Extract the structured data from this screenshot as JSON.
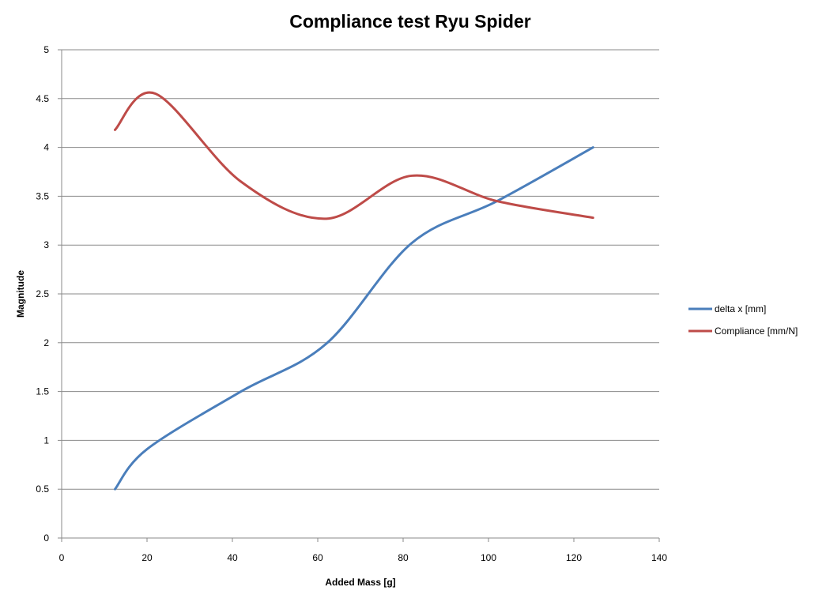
{
  "chart_data": {
    "type": "line",
    "title": "Compliance test Ryu Spider",
    "xlabel": "Added Mass  [g]",
    "ylabel": "Magnitude",
    "xlim": [
      0,
      140
    ],
    "ylim": [
      0,
      5
    ],
    "x_ticks": [
      "0",
      "20",
      "40",
      "60",
      "80",
      "100",
      "120",
      "140"
    ],
    "y_ticks": [
      "0",
      "0.5",
      "1",
      "1.5",
      "2",
      "2.5",
      "3",
      "3.5",
      "4",
      "4.5",
      "5"
    ],
    "grid": "horizontal",
    "legend_position": "right",
    "series": [
      {
        "name": "delta x  [mm]",
        "color": "#4A7EBB",
        "x": [
          12.5,
          20,
          42,
          62,
          82,
          102,
          124.5
        ],
        "y": [
          0.5,
          0.91,
          1.5,
          1.99,
          3.02,
          3.45,
          4.0
        ]
      },
      {
        "name": "Compliance  [mm/N]",
        "color": "#BE4B48",
        "x": [
          12.5,
          22,
          42,
          62,
          82,
          102,
          124.5
        ],
        "y": [
          4.18,
          4.55,
          3.65,
          3.27,
          3.71,
          3.45,
          3.28
        ]
      }
    ]
  }
}
